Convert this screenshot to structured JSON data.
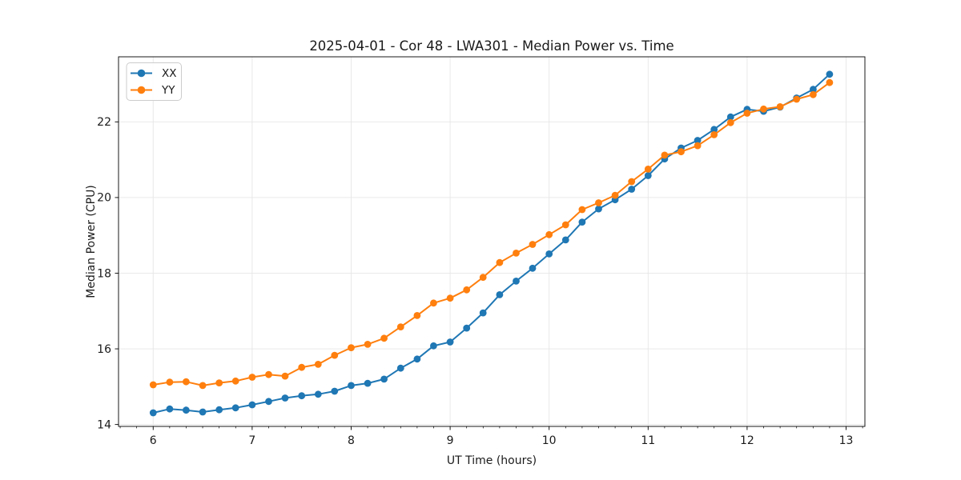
{
  "figure": {
    "background": "#ffffff"
  },
  "chart_data": {
    "type": "line",
    "title": "2025-04-01 - Cor 48 - LWA301 - Median Power vs. Time",
    "xlabel": "UT Time (hours)",
    "ylabel": "Median Power (CPU)",
    "xlim": [
      5.65,
      13.19
    ],
    "ylim": [
      13.95,
      23.72
    ],
    "xticks": [
      6,
      7,
      8,
      9,
      10,
      11,
      12,
      13
    ],
    "yticks": [
      14,
      16,
      18,
      20,
      22
    ],
    "x_minor_step": 0.166667,
    "grid": true,
    "legend_position": "upper-left",
    "x": [
      6.0,
      6.167,
      6.333,
      6.5,
      6.667,
      6.833,
      7.0,
      7.167,
      7.333,
      7.5,
      7.667,
      7.833,
      8.0,
      8.167,
      8.333,
      8.5,
      8.667,
      8.833,
      9.0,
      9.167,
      9.333,
      9.5,
      9.667,
      9.833,
      10.0,
      10.167,
      10.333,
      10.5,
      10.667,
      10.833,
      11.0,
      11.167,
      11.333,
      11.5,
      11.667,
      11.833,
      12.0,
      12.167,
      12.333,
      12.5,
      12.667,
      12.833
    ],
    "series": [
      {
        "name": "XX",
        "color": "#1f77b4",
        "values": [
          14.31,
          14.41,
          14.38,
          14.33,
          14.39,
          14.44,
          14.52,
          14.61,
          14.7,
          14.76,
          14.8,
          14.88,
          15.03,
          15.09,
          15.2,
          15.49,
          15.73,
          16.08,
          16.18,
          16.55,
          16.95,
          17.43,
          17.79,
          18.13,
          18.51,
          18.88,
          19.35,
          19.7,
          19.94,
          20.22,
          20.58,
          21.02,
          21.31,
          21.51,
          21.8,
          22.13,
          22.33,
          22.28,
          22.39,
          22.63,
          22.86,
          23.26
        ]
      },
      {
        "name": "YY",
        "color": "#ff7f0e",
        "values": [
          15.05,
          15.12,
          15.13,
          15.03,
          15.1,
          15.15,
          15.25,
          15.32,
          15.28,
          15.51,
          15.59,
          15.83,
          16.03,
          16.12,
          16.28,
          16.58,
          16.88,
          17.21,
          17.34,
          17.56,
          17.89,
          18.28,
          18.53,
          18.76,
          19.02,
          19.28,
          19.68,
          19.86,
          20.06,
          20.42,
          20.75,
          21.12,
          21.21,
          21.37,
          21.66,
          21.98,
          22.23,
          22.34,
          22.4,
          22.6,
          22.72,
          23.04
        ]
      }
    ]
  },
  "style": {
    "grid_color": "#e6e6e6",
    "spine_color": "#000000",
    "tick_color": "#000000",
    "text_color": "#1a1a1a",
    "legend_border_color": "#cccccc",
    "legend_background": "#ffffff",
    "line_width": 2,
    "marker_radius": 4.4
  }
}
